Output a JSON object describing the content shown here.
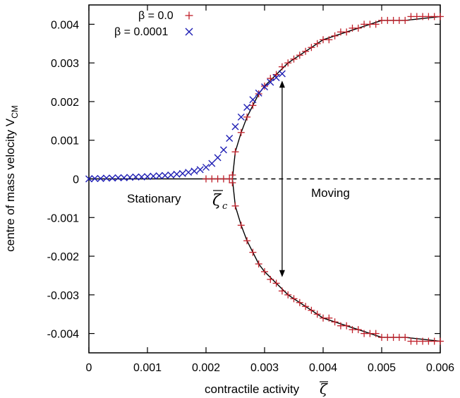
{
  "chart_data": {
    "type": "scatter",
    "xlabel": "contractile activity",
    "xlabel_symbol": "ζ",
    "ylabel": "centre of mass velocity  V",
    "ylabel_sub": "CM",
    "xlim": [
      0,
      0.006
    ],
    "ylim": [
      -0.0045,
      0.0045
    ],
    "x_ticks": [
      "0",
      "0.001",
      "0.002",
      "0.003",
      "0.004",
      "0.005",
      "0.006"
    ],
    "y_ticks": [
      "-0.004",
      "-0.003",
      "-0.002",
      "-0.001",
      "0",
      "0.001",
      "0.002",
      "0.003",
      "0.004"
    ],
    "grid": false,
    "legend_position": "top-left",
    "critical_x": 0.00245,
    "annotations": {
      "stationary": "Stationary",
      "moving": "Moving",
      "critical_symbol": "ζ",
      "critical_sub": "c"
    },
    "series": [
      {
        "name": "β = 0.0",
        "marker": "plus",
        "color": "#c0202a",
        "points": [
          [
            0.002,
            0
          ],
          [
            0.0021,
            0
          ],
          [
            0.0022,
            0
          ],
          [
            0.0023,
            0
          ],
          [
            0.0024,
            0
          ],
          [
            0.00245,
            0.0001
          ],
          [
            0.00245,
            -0.0001
          ],
          [
            0.0025,
            0.0007
          ],
          [
            0.0025,
            -0.0007
          ],
          [
            0.0026,
            0.0012
          ],
          [
            0.0026,
            -0.0012
          ],
          [
            0.0027,
            0.0016
          ],
          [
            0.0027,
            -0.0016
          ],
          [
            0.0028,
            0.0019
          ],
          [
            0.0028,
            -0.0019
          ],
          [
            0.0029,
            0.0022
          ],
          [
            0.0029,
            -0.0022
          ],
          [
            0.003,
            0.0024
          ],
          [
            0.003,
            -0.0024
          ],
          [
            0.0031,
            0.0026
          ],
          [
            0.0031,
            -0.0026
          ],
          [
            0.0032,
            0.0027
          ],
          [
            0.0032,
            -0.0027
          ],
          [
            0.0033,
            0.0029
          ],
          [
            0.0033,
            -0.0029
          ],
          [
            0.0034,
            0.003
          ],
          [
            0.0034,
            -0.003
          ],
          [
            0.0035,
            0.0031
          ],
          [
            0.0035,
            -0.0031
          ],
          [
            0.0036,
            0.0032
          ],
          [
            0.0036,
            -0.0032
          ],
          [
            0.0037,
            0.0033
          ],
          [
            0.0037,
            -0.0033
          ],
          [
            0.0038,
            0.0034
          ],
          [
            0.0038,
            -0.0034
          ],
          [
            0.0039,
            0.0035
          ],
          [
            0.0039,
            -0.0035
          ],
          [
            0.004,
            0.0036
          ],
          [
            0.004,
            -0.0036
          ],
          [
            0.0041,
            0.0036
          ],
          [
            0.0041,
            -0.0036
          ],
          [
            0.0042,
            0.0037
          ],
          [
            0.0042,
            -0.0037
          ],
          [
            0.0043,
            0.0038
          ],
          [
            0.0043,
            -0.0038
          ],
          [
            0.0044,
            0.0038
          ],
          [
            0.0044,
            -0.0038
          ],
          [
            0.0045,
            0.0039
          ],
          [
            0.0045,
            -0.0039
          ],
          [
            0.0046,
            0.0039
          ],
          [
            0.0046,
            -0.0039
          ],
          [
            0.0047,
            0.004
          ],
          [
            0.0047,
            -0.004
          ],
          [
            0.0048,
            0.004
          ],
          [
            0.0048,
            -0.004
          ],
          [
            0.0049,
            0.004
          ],
          [
            0.0049,
            -0.004
          ],
          [
            0.005,
            0.0041
          ],
          [
            0.005,
            -0.0041
          ],
          [
            0.0051,
            0.0041
          ],
          [
            0.0051,
            -0.0041
          ],
          [
            0.0052,
            0.0041
          ],
          [
            0.0052,
            -0.0041
          ],
          [
            0.0053,
            0.0041
          ],
          [
            0.0053,
            -0.0041
          ],
          [
            0.0054,
            0.0041
          ],
          [
            0.0054,
            -0.0041
          ],
          [
            0.0055,
            0.0042
          ],
          [
            0.0055,
            -0.0042
          ],
          [
            0.0056,
            0.0042
          ],
          [
            0.0056,
            -0.0042
          ],
          [
            0.0057,
            0.0042
          ],
          [
            0.0057,
            -0.0042
          ],
          [
            0.0058,
            0.0042
          ],
          [
            0.0058,
            -0.0042
          ],
          [
            0.0059,
            0.0042
          ],
          [
            0.0059,
            -0.0042
          ],
          [
            0.006,
            0.0042
          ],
          [
            0.006,
            -0.0042
          ]
        ]
      },
      {
        "name": "β = 0.0001",
        "marker": "cross",
        "color": "#1f1fb4",
        "points": [
          [
            0.0,
            0.0
          ],
          [
            0.0001,
            1e-05
          ],
          [
            0.0002,
            1e-05
          ],
          [
            0.0003,
            2e-05
          ],
          [
            0.0004,
            2e-05
          ],
          [
            0.0005,
            3e-05
          ],
          [
            0.0006,
            3e-05
          ],
          [
            0.0007,
            4e-05
          ],
          [
            0.0008,
            5e-05
          ],
          [
            0.0009,
            5e-05
          ],
          [
            0.001,
            6e-05
          ],
          [
            0.0011,
            7e-05
          ],
          [
            0.0012,
            8e-05
          ],
          [
            0.0013,
            9e-05
          ],
          [
            0.0014,
            0.0001
          ],
          [
            0.0015,
            0.00012
          ],
          [
            0.0016,
            0.00014
          ],
          [
            0.0017,
            0.00017
          ],
          [
            0.0018,
            0.0002
          ],
          [
            0.0019,
            0.00024
          ],
          [
            0.002,
            0.0003
          ],
          [
            0.0021,
            0.0004
          ],
          [
            0.0022,
            0.00055
          ],
          [
            0.0023,
            0.00075
          ],
          [
            0.0024,
            0.00105
          ],
          [
            0.0025,
            0.00135
          ],
          [
            0.0026,
            0.0016
          ],
          [
            0.0027,
            0.00185
          ],
          [
            0.0028,
            0.00205
          ],
          [
            0.0029,
            0.00222
          ],
          [
            0.003,
            0.00238
          ],
          [
            0.0031,
            0.0025
          ],
          [
            0.0032,
            0.00262
          ],
          [
            0.0033,
            0.00272
          ]
        ]
      },
      {
        "name": "stationary branch",
        "type": "line",
        "style": "solid",
        "color": "#000000",
        "points": [
          [
            0,
            0
          ],
          [
            0.00245,
            0
          ]
        ]
      },
      {
        "name": "unstable stationary branch",
        "type": "line",
        "style": "dashed",
        "color": "#000000",
        "points": [
          [
            0.00245,
            0
          ],
          [
            0.006,
            0
          ]
        ]
      },
      {
        "name": "moving branch (upper)",
        "type": "line",
        "style": "solid",
        "color": "#000000",
        "points": [
          [
            0.00245,
            0.0
          ],
          [
            0.0025,
            0.0007
          ],
          [
            0.0026,
            0.0012
          ],
          [
            0.0027,
            0.0016
          ],
          [
            0.0028,
            0.0019
          ],
          [
            0.0029,
            0.0022
          ],
          [
            0.003,
            0.0024
          ],
          [
            0.0032,
            0.0027
          ],
          [
            0.0034,
            0.003
          ],
          [
            0.0036,
            0.0032
          ],
          [
            0.0038,
            0.0034
          ],
          [
            0.004,
            0.0036
          ],
          [
            0.0042,
            0.0037
          ],
          [
            0.0044,
            0.0038
          ],
          [
            0.0046,
            0.0039
          ],
          [
            0.0048,
            0.004
          ],
          [
            0.005,
            0.0041
          ],
          [
            0.0054,
            0.0041
          ],
          [
            0.006,
            0.0042
          ]
        ]
      },
      {
        "name": "moving branch (lower)",
        "type": "line",
        "style": "solid",
        "color": "#000000",
        "points": [
          [
            0.00245,
            0.0
          ],
          [
            0.0025,
            -0.0007
          ],
          [
            0.0026,
            -0.0012
          ],
          [
            0.0027,
            -0.0016
          ],
          [
            0.0028,
            -0.0019
          ],
          [
            0.0029,
            -0.0022
          ],
          [
            0.003,
            -0.0024
          ],
          [
            0.0032,
            -0.0027
          ],
          [
            0.0034,
            -0.003
          ],
          [
            0.0036,
            -0.0032
          ],
          [
            0.0038,
            -0.0034
          ],
          [
            0.004,
            -0.0036
          ],
          [
            0.0042,
            -0.0037
          ],
          [
            0.0044,
            -0.0038
          ],
          [
            0.0046,
            -0.0039
          ],
          [
            0.0048,
            -0.004
          ],
          [
            0.005,
            -0.0041
          ],
          [
            0.0054,
            -0.0041
          ],
          [
            0.006,
            -0.0042
          ]
        ]
      }
    ],
    "arrow": {
      "x": 0.0033,
      "y_from": 0.00245,
      "y_to": -0.00245,
      "double_headed": true
    }
  }
}
